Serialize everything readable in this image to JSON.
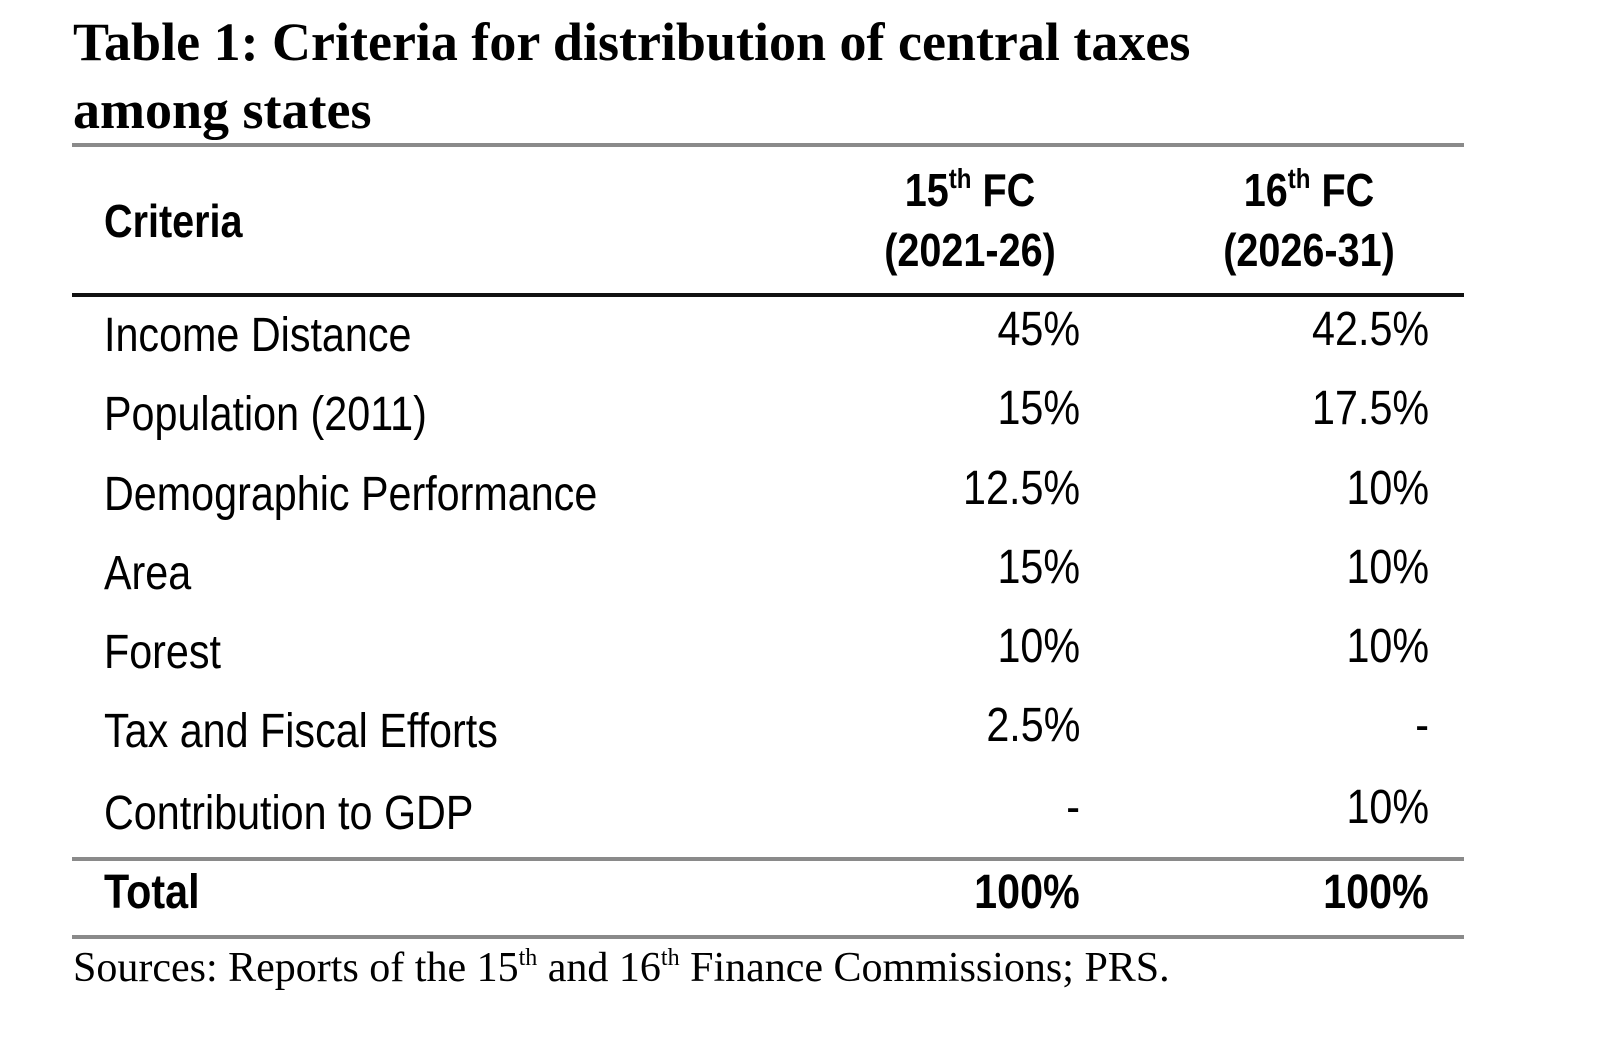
{
  "table": {
    "title_line1": "Table 1: Criteria for distribution of central taxes",
    "title_line2": "among states",
    "headers": {
      "criteria": "Criteria",
      "col1": {
        "num": "15",
        "sup": "th",
        "suffix": " FC",
        "period": "(2021-26)"
      },
      "col2": {
        "num": "16",
        "sup": "th",
        "suffix": " FC",
        "period": "(2026-31)"
      }
    },
    "rows": [
      {
        "criteria": "Income Distance",
        "fc15": "45%",
        "fc16": "42.5%"
      },
      {
        "criteria": "Population (2011)",
        "fc15": "15%",
        "fc16": "17.5%"
      },
      {
        "criteria": "Demographic Performance",
        "fc15": "12.5%",
        "fc16": "10%"
      },
      {
        "criteria": "Area",
        "fc15": "15%",
        "fc16": "10%"
      },
      {
        "criteria": "Forest",
        "fc15": "10%",
        "fc16": "10%"
      },
      {
        "criteria": "Tax and Fiscal Efforts",
        "fc15": "2.5%",
        "fc16": "-"
      },
      {
        "criteria": "Contribution to GDP",
        "fc15": "-",
        "fc16": "10%"
      }
    ],
    "total": {
      "criteria": "Total",
      "fc15": "100%",
      "fc16": "100%"
    }
  },
  "source": {
    "part1": "Sources: Reports of the 15",
    "sup1": "th",
    "part2": " and 16",
    "sup2": "th",
    "part3": " Finance Commissions; PRS."
  }
}
